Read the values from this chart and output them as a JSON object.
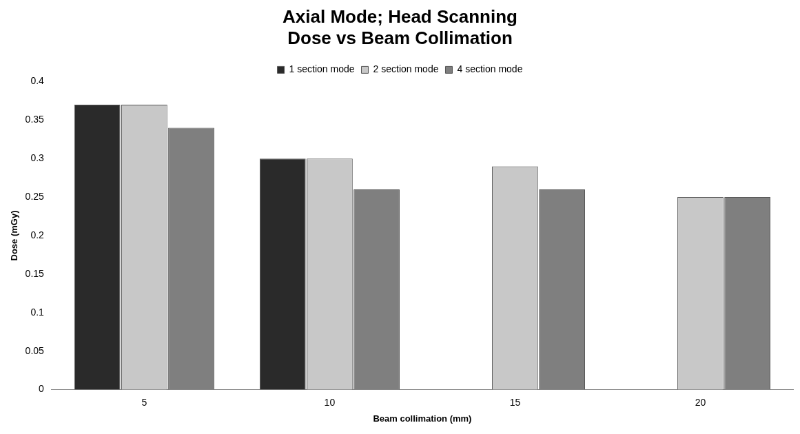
{
  "chart_data": {
    "type": "bar",
    "title": "Axial Mode; Head Scanning\nDose vs Beam Collimation",
    "xlabel": "Beam collimation (mm)",
    "ylabel": "Dose (mGy)",
    "categories": [
      "5",
      "10",
      "15",
      "20"
    ],
    "series": [
      {
        "name": "1 section mode",
        "color": "#2a2a2a",
        "values": [
          0.37,
          0.3,
          null,
          null
        ]
      },
      {
        "name": "2 section mode",
        "color": "#c8c8c8",
        "values": [
          0.37,
          0.3,
          0.29,
          0.25
        ]
      },
      {
        "name": "4 section mode",
        "color": "#7f7f7f",
        "values": [
          0.34,
          0.26,
          0.26,
          0.25
        ]
      }
    ],
    "ylim": [
      0,
      0.4
    ],
    "yticks": [
      0,
      0.05,
      0.1,
      0.15,
      0.2,
      0.25,
      0.3,
      0.35,
      0.4
    ],
    "grid": false,
    "legend": "top"
  }
}
